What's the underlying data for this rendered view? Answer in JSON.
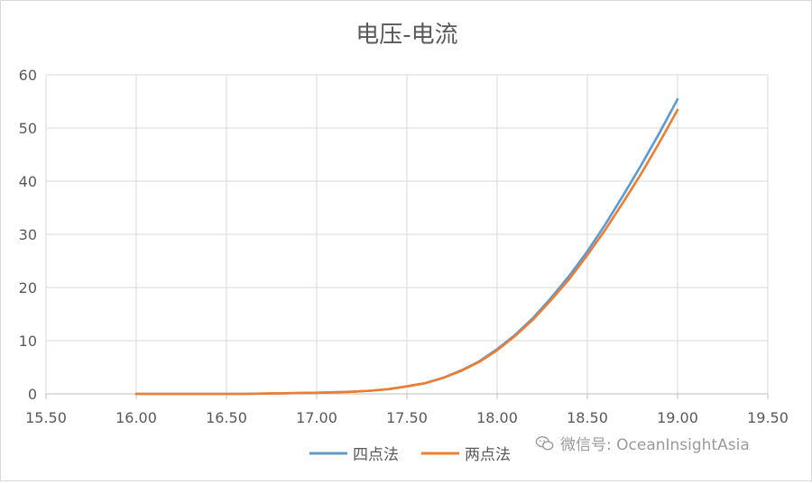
{
  "chart_data": {
    "type": "line",
    "title": "电压-电流",
    "xlim": [
      15.5,
      19.5
    ],
    "ylim": [
      0,
      60
    ],
    "xticks": [
      "15.50",
      "16.00",
      "16.50",
      "17.00",
      "17.50",
      "18.00",
      "18.50",
      "19.00",
      "19.50"
    ],
    "yticks": [
      "0",
      "10",
      "20",
      "30",
      "40",
      "50",
      "60"
    ],
    "grid": true,
    "legend": "bottom",
    "series": [
      {
        "name": "四点法",
        "color": "#5b9bd5",
        "x": [
          16.0,
          16.1,
          16.2,
          16.3,
          16.4,
          16.5,
          16.6,
          16.7,
          16.8,
          16.9,
          17.0,
          17.1,
          17.2,
          17.3,
          17.4,
          17.5,
          17.6,
          17.7,
          17.8,
          17.9,
          18.0,
          18.1,
          18.2,
          18.3,
          18.4,
          18.5,
          18.6,
          18.7,
          18.8,
          18.9,
          19.0
        ],
        "y": [
          0.0,
          0.0,
          0.0,
          0.0,
          0.0,
          0.0,
          0.0,
          0.05,
          0.1,
          0.15,
          0.2,
          0.3,
          0.4,
          0.6,
          0.9,
          1.4,
          2.0,
          3.0,
          4.4,
          6.1,
          8.4,
          11.1,
          14.3,
          18.1,
          22.2,
          26.8,
          31.9,
          37.4,
          43.1,
          49.1,
          55.4
        ]
      },
      {
        "name": "两点法",
        "color": "#ed7d31",
        "x": [
          16.0,
          16.1,
          16.2,
          16.3,
          16.4,
          16.5,
          16.6,
          16.7,
          16.8,
          16.9,
          17.0,
          17.1,
          17.2,
          17.3,
          17.4,
          17.5,
          17.6,
          17.7,
          17.8,
          17.9,
          18.0,
          18.1,
          18.2,
          18.3,
          18.4,
          18.5,
          18.6,
          18.7,
          18.8,
          18.9,
          19.0
        ],
        "y": [
          0.0,
          0.0,
          0.0,
          0.0,
          0.0,
          0.0,
          0.0,
          0.05,
          0.1,
          0.15,
          0.2,
          0.3,
          0.4,
          0.6,
          0.9,
          1.4,
          2.0,
          3.0,
          4.3,
          6.0,
          8.2,
          10.9,
          14.0,
          17.7,
          21.6,
          26.1,
          30.9,
          36.1,
          41.5,
          47.3,
          53.4
        ]
      }
    ]
  },
  "watermark": {
    "text": "微信号: OceanInsightAsia",
    "icon": "wechat-icon"
  }
}
